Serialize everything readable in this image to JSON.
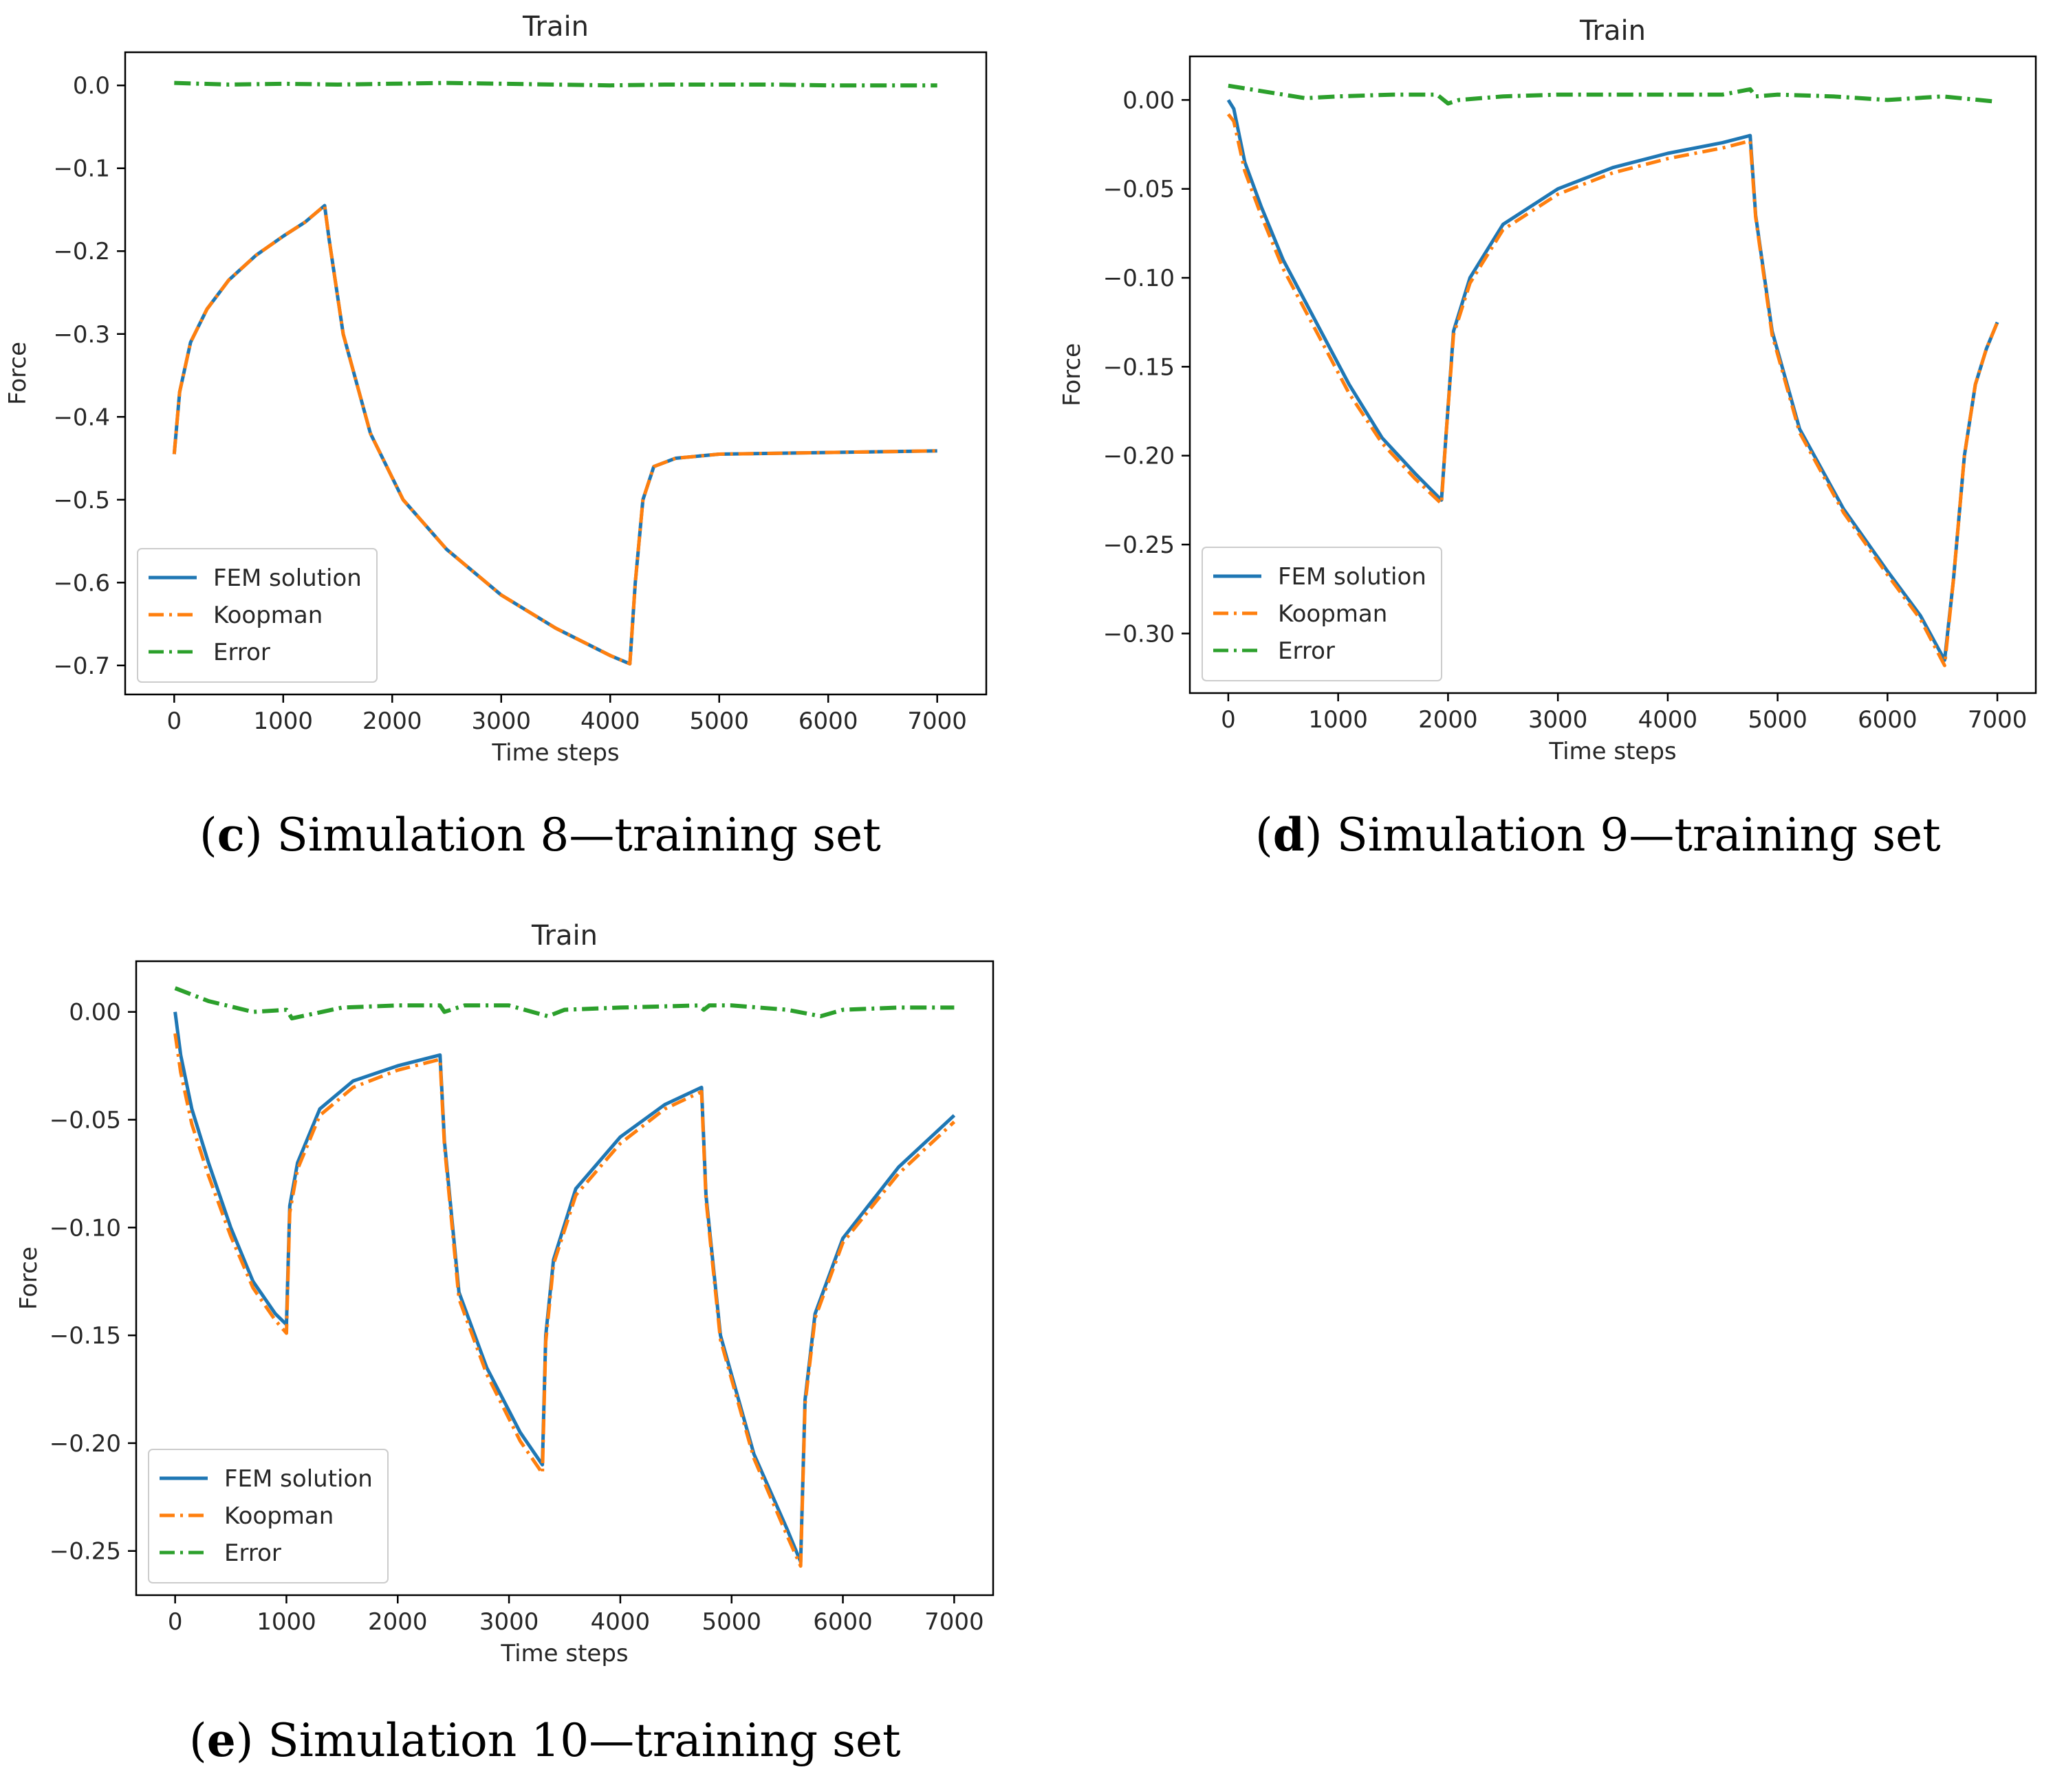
{
  "figure": {
    "captions": [
      {
        "letter": "c",
        "text": "Simulation 8—training set"
      },
      {
        "letter": "d",
        "text": "Simulation 9—training set"
      },
      {
        "letter": "e",
        "text": "Simulation 10—training set"
      }
    ],
    "paren_open": "(",
    "paren_close": ")"
  },
  "colors": {
    "fem": "#1f77b4",
    "koopman": "#ff7f0e",
    "error": "#2ca02c",
    "axis": "#000000",
    "text": "#262626"
  },
  "chart_data": [
    {
      "type": "line",
      "title": "Train",
      "xlabel": "Time steps",
      "ylabel": "Force",
      "xlim": [
        -450,
        7450
      ],
      "ylim": [
        -0.735,
        0.04
      ],
      "xticks": [
        0,
        1000,
        2000,
        3000,
        4000,
        5000,
        6000,
        7000
      ],
      "xtick_labels": [
        "0",
        "1000",
        "2000",
        "3000",
        "4000",
        "5000",
        "6000",
        "7000"
      ],
      "yticks": [
        0.0,
        -0.1,
        -0.2,
        -0.3,
        -0.4,
        -0.5,
        -0.6,
        -0.7
      ],
      "ytick_labels": [
        "0.0",
        "−0.1",
        "−0.2",
        "−0.3",
        "−0.4",
        "−0.5",
        "−0.6",
        "−0.7"
      ],
      "legend_position": "lower-left",
      "series": [
        {
          "name": "FEM solution",
          "style": "solid",
          "x": [
            0,
            50,
            150,
            300,
            500,
            750,
            1000,
            1200,
            1380,
            1420,
            1550,
            1800,
            2100,
            2500,
            3000,
            3500,
            4000,
            4180,
            4230,
            4300,
            4400,
            4600,
            5000,
            6000,
            7000
          ],
          "y": [
            -0.445,
            -0.37,
            -0.31,
            -0.27,
            -0.235,
            -0.205,
            -0.182,
            -0.165,
            -0.145,
            -0.185,
            -0.3,
            -0.42,
            -0.5,
            -0.56,
            -0.615,
            -0.655,
            -0.688,
            -0.698,
            -0.6,
            -0.5,
            -0.46,
            -0.45,
            -0.445,
            -0.443,
            -0.441
          ]
        },
        {
          "name": "Koopman",
          "style": "dashdot",
          "x": [
            0,
            50,
            150,
            300,
            500,
            750,
            1000,
            1200,
            1380,
            1420,
            1550,
            1800,
            2100,
            2500,
            3000,
            3500,
            4000,
            4180,
            4230,
            4300,
            4400,
            4600,
            5000,
            6000,
            7000
          ],
          "y": [
            -0.445,
            -0.37,
            -0.31,
            -0.27,
            -0.235,
            -0.205,
            -0.182,
            -0.165,
            -0.145,
            -0.185,
            -0.3,
            -0.42,
            -0.5,
            -0.56,
            -0.615,
            -0.655,
            -0.688,
            -0.698,
            -0.6,
            -0.5,
            -0.46,
            -0.45,
            -0.445,
            -0.443,
            -0.441
          ]
        },
        {
          "name": "Error",
          "style": "dashdot",
          "x": [
            0,
            500,
            1000,
            1500,
            2000,
            2500,
            3000,
            3500,
            4000,
            4500,
            5000,
            5500,
            6000,
            6500,
            7000
          ],
          "y": [
            0.003,
            0.001,
            0.002,
            0.001,
            0.002,
            0.003,
            0.002,
            0.001,
            0.0,
            0.001,
            0.001,
            0.001,
            0.0,
            0.0,
            0.0
          ]
        }
      ]
    },
    {
      "type": "line",
      "title": "Train",
      "xlabel": "Time steps",
      "ylabel": "Force",
      "xlim": [
        -350,
        7350
      ],
      "ylim": [
        -0.3335,
        0.0245
      ],
      "xticks": [
        0,
        1000,
        2000,
        3000,
        4000,
        5000,
        6000,
        7000
      ],
      "xtick_labels": [
        "0",
        "1000",
        "2000",
        "3000",
        "4000",
        "5000",
        "6000",
        "7000"
      ],
      "yticks": [
        0.0,
        -0.05,
        -0.1,
        -0.15,
        -0.2,
        -0.25,
        -0.3
      ],
      "ytick_labels": [
        "0.00",
        "−0.05",
        "−0.10",
        "−0.15",
        "−0.20",
        "−0.25",
        "−0.30"
      ],
      "legend_position": "lower-left",
      "series": [
        {
          "name": "FEM solution",
          "style": "solid",
          "x": [
            0,
            50,
            150,
            300,
            500,
            800,
            1100,
            1400,
            1700,
            1940,
            1980,
            2050,
            2200,
            2500,
            3000,
            3500,
            4000,
            4500,
            4750,
            4800,
            4950,
            5200,
            5600,
            6000,
            6300,
            6520,
            6600,
            6700,
            6800,
            6900,
            7000
          ],
          "y": [
            0.0,
            -0.005,
            -0.035,
            -0.06,
            -0.09,
            -0.125,
            -0.16,
            -0.19,
            -0.21,
            -0.225,
            -0.19,
            -0.13,
            -0.1,
            -0.07,
            -0.05,
            -0.038,
            -0.03,
            -0.024,
            -0.02,
            -0.065,
            -0.13,
            -0.185,
            -0.23,
            -0.265,
            -0.29,
            -0.315,
            -0.27,
            -0.2,
            -0.16,
            -0.14,
            -0.125
          ]
        },
        {
          "name": "Koopman",
          "style": "dashdot",
          "x": [
            0,
            50,
            150,
            300,
            500,
            800,
            1100,
            1400,
            1700,
            1940,
            1980,
            2050,
            2200,
            2500,
            3000,
            3500,
            4000,
            4500,
            4750,
            4800,
            4950,
            5200,
            5600,
            6000,
            6300,
            6520,
            6600,
            6700,
            6800,
            6900,
            7000
          ],
          "y": [
            -0.008,
            -0.012,
            -0.04,
            -0.065,
            -0.095,
            -0.13,
            -0.165,
            -0.193,
            -0.213,
            -0.227,
            -0.19,
            -0.132,
            -0.103,
            -0.073,
            -0.053,
            -0.041,
            -0.033,
            -0.027,
            -0.023,
            -0.066,
            -0.132,
            -0.187,
            -0.232,
            -0.267,
            -0.292,
            -0.318,
            -0.27,
            -0.2,
            -0.16,
            -0.14,
            -0.125
          ]
        },
        {
          "name": "Error",
          "style": "dashdot",
          "x": [
            0,
            300,
            700,
            1000,
            1500,
            1900,
            2000,
            2100,
            2500,
            3000,
            3500,
            4000,
            4500,
            4750,
            4800,
            5000,
            5500,
            6000,
            6500,
            7000
          ],
          "y": [
            0.008,
            0.005,
            0.001,
            0.002,
            0.003,
            0.003,
            -0.002,
            0.0,
            0.002,
            0.003,
            0.003,
            0.003,
            0.003,
            0.006,
            0.002,
            0.003,
            0.002,
            0.0,
            0.002,
            -0.001
          ]
        }
      ]
    },
    {
      "type": "line",
      "title": "Train",
      "xlabel": "Time steps",
      "ylabel": "Force",
      "xlim": [
        -350,
        7350
      ],
      "ylim": [
        -0.2705,
        0.0235
      ],
      "xticks": [
        0,
        1000,
        2000,
        3000,
        4000,
        5000,
        6000,
        7000
      ],
      "xtick_labels": [
        "0",
        "1000",
        "2000",
        "3000",
        "4000",
        "5000",
        "6000",
        "7000"
      ],
      "yticks": [
        0.0,
        -0.05,
        -0.1,
        -0.15,
        -0.2,
        -0.25
      ],
      "ytick_labels": [
        "0.00",
        "−0.05",
        "−0.10",
        "−0.15",
        "−0.20",
        "−0.25"
      ],
      "legend_position": "lower-left",
      "series": [
        {
          "name": "FEM solution",
          "style": "solid",
          "x": [
            0,
            50,
            150,
            300,
            500,
            700,
            900,
            1000,
            1030,
            1100,
            1300,
            1600,
            2000,
            2380,
            2420,
            2550,
            2800,
            3100,
            3300,
            3330,
            3400,
            3600,
            4000,
            4400,
            4730,
            4770,
            4900,
            5200,
            5500,
            5620,
            5660,
            5750,
            6000,
            6500,
            7000
          ],
          "y": [
            0.0,
            -0.02,
            -0.045,
            -0.07,
            -0.1,
            -0.125,
            -0.14,
            -0.145,
            -0.09,
            -0.07,
            -0.045,
            -0.032,
            -0.025,
            -0.02,
            -0.06,
            -0.13,
            -0.165,
            -0.195,
            -0.21,
            -0.15,
            -0.115,
            -0.082,
            -0.058,
            -0.043,
            -0.035,
            -0.085,
            -0.15,
            -0.205,
            -0.24,
            -0.255,
            -0.18,
            -0.14,
            -0.105,
            -0.072,
            -0.048
          ]
        },
        {
          "name": "Koopman",
          "style": "dashdot",
          "x": [
            0,
            50,
            150,
            300,
            500,
            700,
            900,
            1000,
            1030,
            1100,
            1300,
            1600,
            2000,
            2380,
            2420,
            2550,
            2800,
            3100,
            3300,
            3330,
            3400,
            3600,
            4000,
            4400,
            4730,
            4770,
            4900,
            5200,
            5500,
            5620,
            5660,
            5750,
            6000,
            6500,
            7000
          ],
          "y": [
            -0.01,
            -0.028,
            -0.052,
            -0.076,
            -0.104,
            -0.128,
            -0.143,
            -0.149,
            -0.093,
            -0.073,
            -0.048,
            -0.035,
            -0.027,
            -0.022,
            -0.062,
            -0.133,
            -0.168,
            -0.199,
            -0.214,
            -0.153,
            -0.117,
            -0.085,
            -0.061,
            -0.045,
            -0.037,
            -0.087,
            -0.152,
            -0.207,
            -0.243,
            -0.257,
            -0.182,
            -0.142,
            -0.107,
            -0.075,
            -0.051
          ]
        },
        {
          "name": "Error",
          "style": "dashdot",
          "x": [
            0,
            300,
            700,
            1000,
            1050,
            1500,
            2000,
            2380,
            2420,
            2600,
            3000,
            3350,
            3500,
            4000,
            4700,
            4750,
            4800,
            5000,
            5500,
            5800,
            6000,
            6500,
            7000
          ],
          "y": [
            0.011,
            0.005,
            0.0,
            0.001,
            -0.003,
            0.002,
            0.003,
            0.003,
            0.0,
            0.003,
            0.003,
            -0.002,
            0.001,
            0.002,
            0.003,
            0.001,
            0.003,
            0.003,
            0.001,
            -0.002,
            0.001,
            0.002,
            0.002
          ]
        }
      ]
    }
  ]
}
